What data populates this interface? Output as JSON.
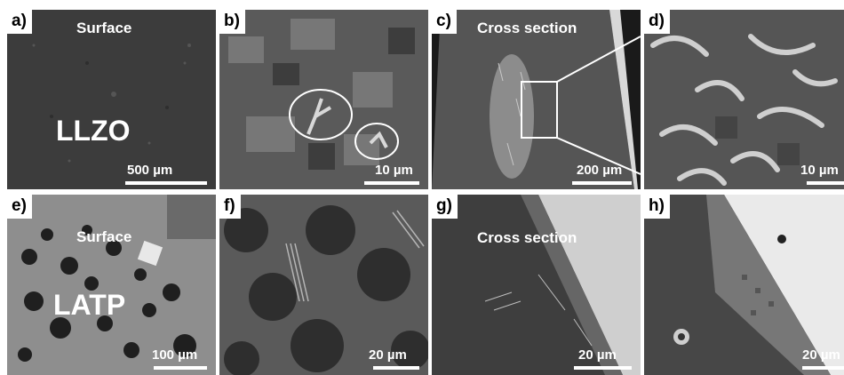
{
  "panels": [
    {
      "id": "a",
      "label": "a)",
      "title": "Surface",
      "material": "LLZO",
      "scale": "500 µm"
    },
    {
      "id": "b",
      "label": "b)",
      "title": "",
      "material": "",
      "scale": "10 µm"
    },
    {
      "id": "c",
      "label": "c)",
      "title": "Cross section",
      "material": "",
      "scale": "200 µm"
    },
    {
      "id": "d",
      "label": "d)",
      "title": "",
      "material": "",
      "scale": "10 µm"
    },
    {
      "id": "e",
      "label": "e)",
      "title": "Surface",
      "material": "LATP",
      "scale": "100 µm"
    },
    {
      "id": "f",
      "label": "f)",
      "title": "",
      "material": "",
      "scale": "20 µm"
    },
    {
      "id": "g",
      "label": "g)",
      "title": "Cross section",
      "material": "",
      "scale": "20 µm"
    },
    {
      "id": "h",
      "label": "h)",
      "title": "",
      "material": "",
      "scale": "20 µm"
    }
  ]
}
